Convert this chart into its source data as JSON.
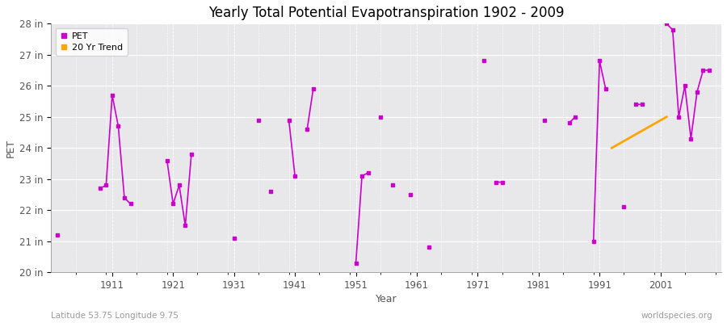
{
  "title": "Yearly Total Potential Evapotranspiration 1902 - 2009",
  "xlabel": "Year",
  "ylabel": "PET",
  "subtitle": "Latitude 53.75 Longitude 9.75",
  "watermark": "worldspecies.org",
  "pet_color": "#cc00cc",
  "trend_color": "#ffa500",
  "background_color": "#f0f0f0",
  "plot_bg_color": "#e8e8e8",
  "ylim": [
    20,
    28
  ],
  "ytick_labels": [
    "20 in",
    "21 in",
    "22 in",
    "23 in",
    "24 in",
    "25 in",
    "26 in",
    "27 in",
    "28 in"
  ],
  "ytick_values": [
    20,
    21,
    22,
    23,
    24,
    25,
    26,
    27,
    28
  ],
  "xtick_vals": [
    1911,
    1921,
    1931,
    1941,
    1951,
    1961,
    1971,
    1981,
    1991,
    2001
  ],
  "xlim": [
    1901,
    2011
  ],
  "years": [
    1902,
    1903,
    1904,
    1905,
    1906,
    1907,
    1908,
    1909,
    1910,
    1911,
    1912,
    1913,
    1914,
    1915,
    1916,
    1917,
    1918,
    1919,
    1920,
    1921,
    1922,
    1923,
    1924,
    1925,
    1926,
    1927,
    1928,
    1929,
    1930,
    1931,
    1932,
    1933,
    1934,
    1935,
    1936,
    1937,
    1938,
    1939,
    1940,
    1941,
    1942,
    1943,
    1944,
    1945,
    1946,
    1947,
    1948,
    1949,
    1950,
    1951,
    1952,
    1953,
    1954,
    1955,
    1956,
    1957,
    1958,
    1959,
    1960,
    1961,
    1962,
    1963,
    1964,
    1965,
    1966,
    1967,
    1968,
    1969,
    1970,
    1971,
    1972,
    1973,
    1974,
    1975,
    1976,
    1977,
    1978,
    1979,
    1980,
    1981,
    1982,
    1983,
    1984,
    1985,
    1986,
    1987,
    1988,
    1989,
    1990,
    1991,
    1992,
    1993,
    1994,
    1995,
    1996,
    1997,
    1998,
    1999,
    2000,
    2001,
    2002,
    2003,
    2004,
    2005,
    2006,
    2007,
    2008,
    2009
  ],
  "pet_values": [
    21.2,
    null,
    null,
    null,
    null,
    null,
    null,
    null,
    null,
    22.7,
    22.8,
    25.7,
    24.7,
    22.4,
    null,
    null,
    null,
    null,
    null,
    23.6,
    22.2,
    22.8,
    21.5,
    23.8,
    null,
    null,
    null,
    null,
    null,
    null,
    21.1,
    null,
    null,
    null,
    null,
    null,
    null,
    null,
    null,
    24.9,
    23.1,
    null,
    24.6,
    25.9,
    null,
    null,
    null,
    null,
    null,
    null,
    23.1,
    23.2,
    null,
    null,
    25.0,
    null,
    null,
    null,
    null,
    22.8,
    null,
    null,
    20.8,
    null,
    null,
    null,
    null,
    null,
    null,
    null,
    null,
    26.8,
    null,
    null,
    null,
    null,
    null,
    null,
    null,
    null,
    null,
    24.9,
    null,
    null,
    null,
    24.8,
    25.0,
    null,
    null,
    26.8,
    25.9,
    null,
    null,
    null,
    null,
    null,
    null,
    null,
    null,
    null,
    null,
    28.0,
    27.8,
    25.0,
    26.0,
    24.3,
    25.8,
    26.5
  ],
  "connected_segments": [
    {
      "years": [
        1909,
        1910,
        1911,
        1912,
        1913,
        1914
      ],
      "values": [
        22.7,
        22.8,
        25.7,
        24.7,
        22.4,
        22.2
      ]
    },
    {
      "years": [
        1920,
        1921,
        1922,
        1923,
        1924
      ],
      "values": [
        23.6,
        22.2,
        22.8,
        21.5,
        23.8
      ]
    },
    {
      "years": [
        1940,
        1941,
        1942,
        1944,
        1945
      ],
      "values": [
        24.9,
        23.1,
        24.6,
        24.6,
        25.9
      ]
    },
    {
      "years": [
        1951,
        1952,
        1953
      ],
      "values": [
        23.1,
        23.2,
        23.2
      ]
    },
    {
      "years": [
        1955,
        1956
      ],
      "values": [
        25.0,
        25.0
      ]
    },
    {
      "years": [
        1990,
        1991
      ],
      "values": [
        26.8,
        25.9
      ]
    },
    {
      "years": [
        2002,
        2003,
        2004,
        2005,
        2006,
        2007,
        2008,
        2009
      ],
      "values": [
        28.0,
        27.8,
        25.0,
        26.0,
        24.3,
        25.8,
        26.5,
        26.5
      ]
    }
  ],
  "trend_x": [
    1993,
    2002
  ],
  "trend_y": [
    24.0,
    25.0
  ],
  "isolated_points": {
    "1902": 21.2,
    "1931": 21.1,
    "1935": 24.9,
    "1937": 22.6,
    "1951": 20.3,
    "1960": 22.8,
    "1964": 20.8,
    "1972": 26.8,
    "1982": 24.9,
    "1986": 24.8,
    "1987": 25.0,
    "1991": 26.8,
    "1992": 25.9
  }
}
